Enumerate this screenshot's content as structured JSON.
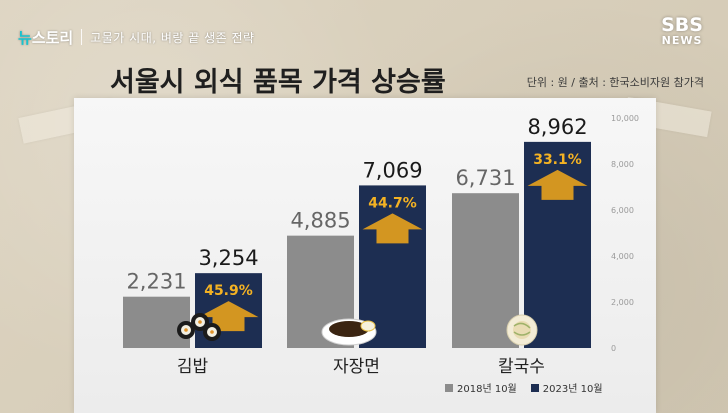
{
  "header": {
    "brand_prefix": "뉴",
    "brand_main": "스토리",
    "program_title": "고물가 시대, 벼랑 끝 생존 전략",
    "broadcaster_line1": "SBS",
    "broadcaster_line2": "NEWS"
  },
  "unit_note": "단위 : 원 / 출처 : 한국소비자원 참가격",
  "colors": {
    "series_2018": "#8c8c8c",
    "series_2023": "#1d2e52",
    "percent_label": "#f4b223"
  },
  "chart_data": {
    "type": "bar",
    "title": "서울시 외식 품목 가격 상승률",
    "categories": [
      "김밥",
      "자장면",
      "칼국수"
    ],
    "series": [
      {
        "name": "2018년 10월",
        "values": [
          2231,
          4885,
          6731
        ],
        "labels": [
          "2,231",
          "4,885",
          "6,731"
        ]
      },
      {
        "name": "2023년 10월",
        "values": [
          3254,
          7069,
          8962
        ],
        "labels": [
          "3,254",
          "7,069",
          "8,962"
        ]
      }
    ],
    "increase_labels": [
      "45.9%",
      "44.7%",
      "33.1%"
    ],
    "ylim": [
      0,
      10000
    ],
    "yticks": [
      0,
      2000,
      4000,
      6000,
      8000,
      10000
    ],
    "ytick_labels": [
      "0",
      "2,000",
      "4,000",
      "6,000",
      "8,000",
      "10,000"
    ],
    "axis_side": "right",
    "grid": false,
    "legend": "bottom-right",
    "category_icons": [
      "gimbap-icon",
      "jajangmyeon-icon",
      "kalguksu-icon"
    ]
  }
}
